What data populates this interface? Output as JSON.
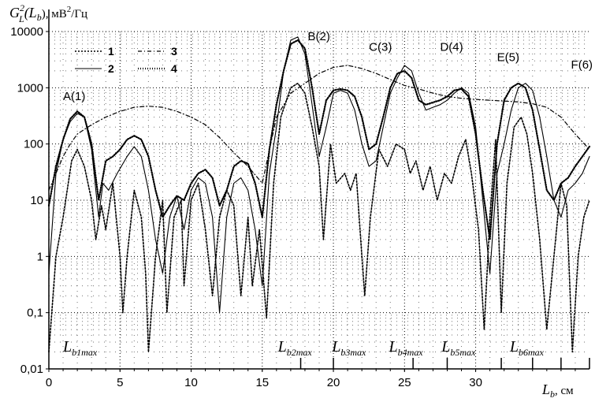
{
  "chart_data": {
    "type": "line",
    "title": "",
    "ylabel_parts": {
      "main": "G",
      "sup": "2",
      "sub": "L",
      "rest": "(L",
      "rest_sub": "b",
      "rest_end": "), мВ",
      "unit_sup": "2",
      "unit_end": "/Гц"
    },
    "xlabel_parts": {
      "main": "L",
      "sub": "b",
      "rest": ", см"
    },
    "y_scale": "log",
    "ylim": [
      0.01,
      10000
    ],
    "xlim": [
      0,
      38
    ],
    "x_ticks": [
      {
        "v": 0,
        "label": "0"
      },
      {
        "v": 5,
        "label": "5"
      },
      {
        "v": 10,
        "label": "10"
      },
      {
        "v": 15,
        "label": "15"
      },
      {
        "v": 20,
        "label": "20"
      },
      {
        "v": 25,
        "label": "25"
      },
      {
        "v": 30,
        "label": "30"
      }
    ],
    "y_ticks": [
      {
        "v": 0.01,
        "label": "0,01"
      },
      {
        "v": 0.1,
        "label": "0,1"
      },
      {
        "v": 1,
        "label": "1"
      },
      {
        "v": 10,
        "label": "10"
      },
      {
        "v": 100,
        "label": "100"
      },
      {
        "v": 1000,
        "label": "1000"
      },
      {
        "v": 10000,
        "label": "10000"
      }
    ],
    "grid": true,
    "legend_position": "top-left",
    "series": [
      {
        "name": "1",
        "dash": "2,2",
        "width": 1.6,
        "x": [
          0,
          0.5,
          1,
          1.6,
          2,
          2.5,
          3,
          3.3,
          3.7,
          4,
          4.5,
          5,
          5.2,
          5.5,
          6,
          6.5,
          6.8,
          7,
          7.5,
          8,
          8.3,
          8.8,
          9.3,
          9.5,
          10,
          10.5,
          11,
          11.5,
          12,
          12.5,
          13,
          13.5,
          14,
          14.3,
          14.8,
          15.3,
          15.8,
          16.3,
          17,
          17.5,
          18,
          18.5,
          19,
          19.3,
          19.8,
          20.2,
          20.8,
          21.2,
          21.6,
          22,
          22.2,
          22.6,
          23.2,
          23.8,
          24.4,
          25,
          25.4,
          25.8,
          26.3,
          26.8,
          27.3,
          27.8,
          28.3,
          28.8,
          29.3,
          29.7,
          30.2,
          30.6,
          31,
          31.4,
          31.8,
          32.2,
          32.7,
          33.2,
          33.6,
          34,
          34.5,
          35,
          35.5,
          36,
          36.4,
          36.8,
          37.2,
          37.6,
          38
        ],
        "y": [
          0.02,
          1,
          5,
          50,
          80,
          40,
          10,
          2,
          8,
          3,
          20,
          1,
          0.1,
          1,
          15,
          5,
          0.5,
          0.02,
          1,
          10,
          0.1,
          5,
          10,
          0.3,
          10,
          20,
          3,
          0.2,
          5,
          15,
          8,
          0.2,
          5,
          0.3,
          3,
          0.08,
          20,
          300,
          1000,
          1200,
          800,
          200,
          40,
          2,
          100,
          20,
          30,
          15,
          30,
          1,
          0.2,
          5,
          80,
          40,
          100,
          80,
          30,
          50,
          15,
          40,
          10,
          30,
          20,
          60,
          120,
          30,
          3,
          0.05,
          5,
          120,
          0.1,
          20,
          200,
          300,
          150,
          30,
          2,
          0.05,
          1,
          20,
          8,
          0.02,
          1,
          5,
          10
        ]
      },
      {
        "name": "2",
        "dash": "",
        "width": 1.1,
        "x": [
          0,
          0.5,
          1,
          1.5,
          2,
          2.5,
          3,
          3.5,
          3.8,
          4.2,
          4.8,
          5.5,
          6,
          6.5,
          7,
          7.5,
          8,
          8.5,
          9,
          9.5,
          10,
          10.5,
          11,
          11.5,
          12,
          12.5,
          13,
          13.5,
          14,
          14.5,
          15,
          15.5,
          16,
          16.5,
          17,
          17.5,
          18,
          18.5,
          19,
          19.5,
          20,
          20.5,
          21,
          21.5,
          22,
          22.5,
          23,
          23.5,
          24,
          24.5,
          25,
          25.5,
          26,
          26.5,
          27,
          27.5,
          28,
          28.5,
          29,
          29.5,
          30,
          30.5,
          31,
          31.5,
          32,
          32.5,
          33,
          33.5,
          34,
          34.5,
          35,
          35.5,
          36,
          36.5,
          37,
          37.5,
          38
        ],
        "y": [
          0.5,
          30,
          120,
          250,
          350,
          300,
          80,
          5,
          20,
          15,
          30,
          60,
          90,
          60,
          15,
          2,
          0.5,
          5,
          12,
          3,
          15,
          25,
          20,
          5,
          0.1,
          5,
          20,
          25,
          15,
          3,
          0.3,
          30,
          200,
          2000,
          7000,
          8000,
          4000,
          500,
          60,
          200,
          800,
          900,
          800,
          400,
          100,
          40,
          50,
          200,
          800,
          1500,
          2500,
          2000,
          800,
          400,
          450,
          500,
          600,
          800,
          1000,
          800,
          200,
          10,
          0.5,
          30,
          100,
          400,
          1000,
          1200,
          900,
          300,
          60,
          10,
          5,
          15,
          20,
          30,
          60
        ]
      },
      {
        "name": "3",
        "dash": "5,3,1,3",
        "width": 1.2,
        "x": [
          0,
          0.5,
          1,
          1.5,
          2,
          3,
          4,
          5,
          6,
          7,
          8,
          9,
          10,
          11,
          12,
          13,
          14,
          15,
          16,
          17,
          18,
          19,
          20,
          21,
          22,
          23,
          24,
          25,
          26,
          27,
          28,
          29,
          30,
          31,
          32,
          33,
          34,
          35,
          36,
          37,
          38
        ],
        "y": [
          15,
          30,
          60,
          100,
          150,
          220,
          300,
          380,
          450,
          470,
          450,
          380,
          300,
          220,
          130,
          70,
          40,
          20,
          300,
          800,
          1200,
          1800,
          2300,
          2500,
          2200,
          1800,
          1400,
          1100,
          950,
          800,
          700,
          650,
          620,
          600,
          580,
          560,
          520,
          450,
          300,
          150,
          80
        ]
      },
      {
        "name": "4",
        "dash": "1,2",
        "width": 2.2,
        "x": [
          0,
          0.5,
          1,
          1.5,
          2,
          2.5,
          3,
          3.5,
          4,
          4.5,
          5,
          5.5,
          6,
          6.5,
          7,
          7.5,
          8,
          8.5,
          9,
          9.5,
          10,
          10.5,
          11,
          11.5,
          12,
          12.5,
          13,
          13.5,
          14,
          14.5,
          15,
          15.5,
          16,
          16.5,
          17,
          17.5,
          18,
          18.5,
          19,
          19.5,
          20,
          20.5,
          21,
          21.5,
          22,
          22.5,
          23,
          23.5,
          24,
          24.5,
          25,
          25.5,
          26,
          26.5,
          27,
          27.5,
          28,
          28.5,
          29,
          29.5,
          30,
          30.5,
          31,
          31.5,
          32,
          32.5,
          33,
          33.5,
          34,
          34.5,
          35,
          35.5,
          36,
          36.5,
          37,
          37.5,
          38
        ],
        "y": [
          8,
          40,
          120,
          280,
          380,
          300,
          100,
          10,
          50,
          60,
          80,
          120,
          140,
          120,
          60,
          15,
          5,
          8,
          12,
          10,
          20,
          30,
          35,
          25,
          8,
          15,
          40,
          50,
          45,
          20,
          5,
          80,
          500,
          2000,
          6000,
          7000,
          5000,
          1000,
          150,
          600,
          900,
          950,
          900,
          700,
          300,
          80,
          100,
          300,
          1000,
          1800,
          2000,
          1500,
          600,
          500,
          550,
          600,
          700,
          900,
          950,
          700,
          150,
          15,
          2,
          100,
          600,
          1000,
          1200,
          1000,
          400,
          80,
          15,
          10,
          20,
          25,
          40,
          60,
          90
        ]
      }
    ],
    "annotations": [
      {
        "text": "A(1)",
        "x": 1.0,
        "y": 600
      },
      {
        "text": "B(2)",
        "x": 18.2,
        "y": 7000
      },
      {
        "text": "C(3)",
        "x": 22.5,
        "y": 4500
      },
      {
        "text": "D(4)",
        "x": 27.5,
        "y": 4500
      },
      {
        "text": "E(5)",
        "x": 31.5,
        "y": 3000
      },
      {
        "text": "F(6)",
        "x": 36.7,
        "y": 2200
      }
    ],
    "peak_labels": [
      {
        "main": "L",
        "sub": "b1max",
        "x": 1.0
      },
      {
        "main": "L",
        "sub": "b2max",
        "x": 16.1
      },
      {
        "main": "L",
        "sub": "b3max",
        "x": 19.9
      },
      {
        "main": "L",
        "sub": "b4max",
        "x": 23.9
      },
      {
        "main": "L",
        "sub": "b5max",
        "x": 27.6
      },
      {
        "main": "L",
        "sub": "b6max",
        "x": 32.4
      }
    ],
    "peak_markers": [
      17.7,
      20.0,
      25.6,
      28.0,
      31.8,
      34.0,
      36.0,
      38.0
    ]
  }
}
